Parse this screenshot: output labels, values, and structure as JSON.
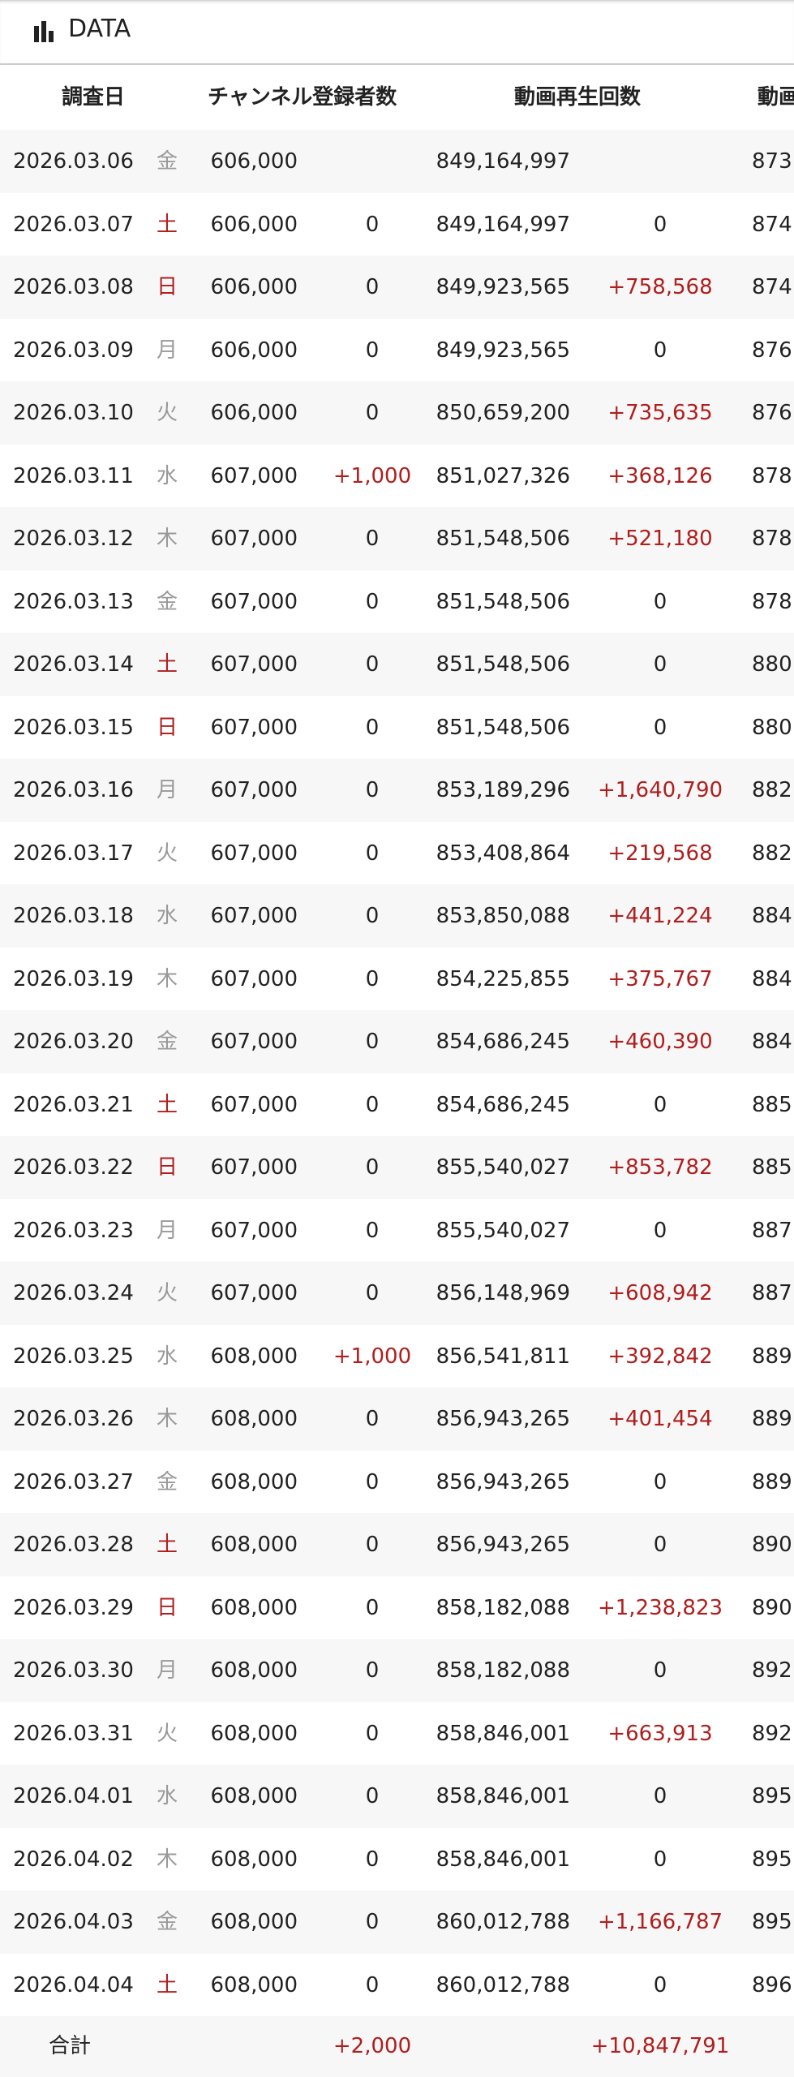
{
  "header": {
    "title": "DATA"
  },
  "table": {
    "columns": [
      "調査日",
      "チャンネル登録者数",
      "動画再生回数",
      "動画"
    ],
    "rows": [
      [
        "2026.03.06",
        "金",
        "606,000",
        null,
        "849,164,997",
        null,
        "873"
      ],
      [
        "2026.03.07",
        "土",
        "606,000",
        "0",
        "849,164,997",
        "0",
        "874"
      ],
      [
        "2026.03.08",
        "日",
        "606,000",
        "0",
        "849,923,565",
        "+758,568",
        "874"
      ],
      [
        "2026.03.09",
        "月",
        "606,000",
        "0",
        "849,923,565",
        "0",
        "876"
      ],
      [
        "2026.03.10",
        "火",
        "606,000",
        "0",
        "850,659,200",
        "+735,635",
        "876"
      ],
      [
        "2026.03.11",
        "水",
        "607,000",
        "+1,000",
        "851,027,326",
        "+368,126",
        "878"
      ],
      [
        "2026.03.12",
        "木",
        "607,000",
        "0",
        "851,548,506",
        "+521,180",
        "878"
      ],
      [
        "2026.03.13",
        "金",
        "607,000",
        "0",
        "851,548,506",
        "0",
        "878"
      ],
      [
        "2026.03.14",
        "土",
        "607,000",
        "0",
        "851,548,506",
        "0",
        "880"
      ],
      [
        "2026.03.15",
        "日",
        "607,000",
        "0",
        "851,548,506",
        "0",
        "880"
      ],
      [
        "2026.03.16",
        "月",
        "607,000",
        "0",
        "853,189,296",
        "+1,640,790",
        "882"
      ],
      [
        "2026.03.17",
        "火",
        "607,000",
        "0",
        "853,408,864",
        "+219,568",
        "882"
      ],
      [
        "2026.03.18",
        "水",
        "607,000",
        "0",
        "853,850,088",
        "+441,224",
        "884"
      ],
      [
        "2026.03.19",
        "木",
        "607,000",
        "0",
        "854,225,855",
        "+375,767",
        "884"
      ],
      [
        "2026.03.20",
        "金",
        "607,000",
        "0",
        "854,686,245",
        "+460,390",
        "884"
      ],
      [
        "2026.03.21",
        "土",
        "607,000",
        "0",
        "854,686,245",
        "0",
        "885"
      ],
      [
        "2026.03.22",
        "日",
        "607,000",
        "0",
        "855,540,027",
        "+853,782",
        "885"
      ],
      [
        "2026.03.23",
        "月",
        "607,000",
        "0",
        "855,540,027",
        "0",
        "887"
      ],
      [
        "2026.03.24",
        "火",
        "607,000",
        "0",
        "856,148,969",
        "+608,942",
        "887"
      ],
      [
        "2026.03.25",
        "水",
        "608,000",
        "+1,000",
        "856,541,811",
        "+392,842",
        "889"
      ],
      [
        "2026.03.26",
        "木",
        "608,000",
        "0",
        "856,943,265",
        "+401,454",
        "889"
      ],
      [
        "2026.03.27",
        "金",
        "608,000",
        "0",
        "856,943,265",
        "0",
        "889"
      ],
      [
        "2026.03.28",
        "土",
        "608,000",
        "0",
        "856,943,265",
        "0",
        "890"
      ],
      [
        "2026.03.29",
        "日",
        "608,000",
        "0",
        "858,182,088",
        "+1,238,823",
        "890"
      ],
      [
        "2026.03.30",
        "月",
        "608,000",
        "0",
        "858,182,088",
        "0",
        "892"
      ],
      [
        "2026.03.31",
        "火",
        "608,000",
        "0",
        "858,846,001",
        "+663,913",
        "892"
      ],
      [
        "2026.04.01",
        "水",
        "608,000",
        "0",
        "858,846,001",
        "0",
        "895"
      ],
      [
        "2026.04.02",
        "木",
        "608,000",
        "0",
        "858,846,001",
        "0",
        "895"
      ],
      [
        "2026.04.03",
        "金",
        "608,000",
        "0",
        "860,012,788",
        "+1,166,787",
        "895"
      ],
      [
        "2026.04.04",
        "土",
        "608,000",
        "0",
        "860,012,788",
        "0",
        "896"
      ]
    ],
    "total": {
      "label": "合計",
      "subscribers": "+2,000",
      "views": "+10,847,791"
    }
  }
}
